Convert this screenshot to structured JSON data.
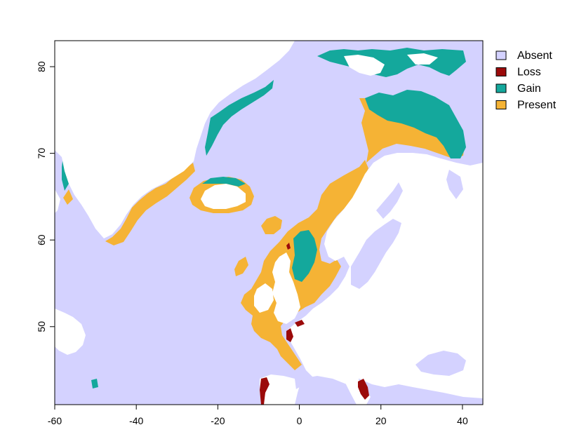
{
  "colors": {
    "absent": "#d4d2ff",
    "loss": "#9b0a0a",
    "gain": "#14a89c",
    "present": "#f5b335",
    "land": "#ffffff"
  },
  "chart_data": {
    "type": "heatmap",
    "title": "",
    "xlabel": "",
    "ylabel": "",
    "xlim": [
      -60,
      45
    ],
    "ylim": [
      41,
      83
    ],
    "x_ticks": [
      -60,
      -40,
      -20,
      0,
      20,
      40
    ],
    "y_ticks": [
      50,
      60,
      70,
      80
    ],
    "x_tick_labels": [
      "-60",
      "-40",
      "-20",
      "0",
      "20",
      "40"
    ],
    "y_tick_labels": [
      "50",
      "60",
      "70",
      "80"
    ],
    "grid": false,
    "legend_position": "top-right",
    "legend": [
      {
        "name": "Absent",
        "color": "#d4d2ff"
      },
      {
        "name": "Loss",
        "color": "#9b0a0a"
      },
      {
        "name": "Gain",
        "color": "#14a89c"
      },
      {
        "name": "Present",
        "color": "#f5b335"
      }
    ]
  }
}
